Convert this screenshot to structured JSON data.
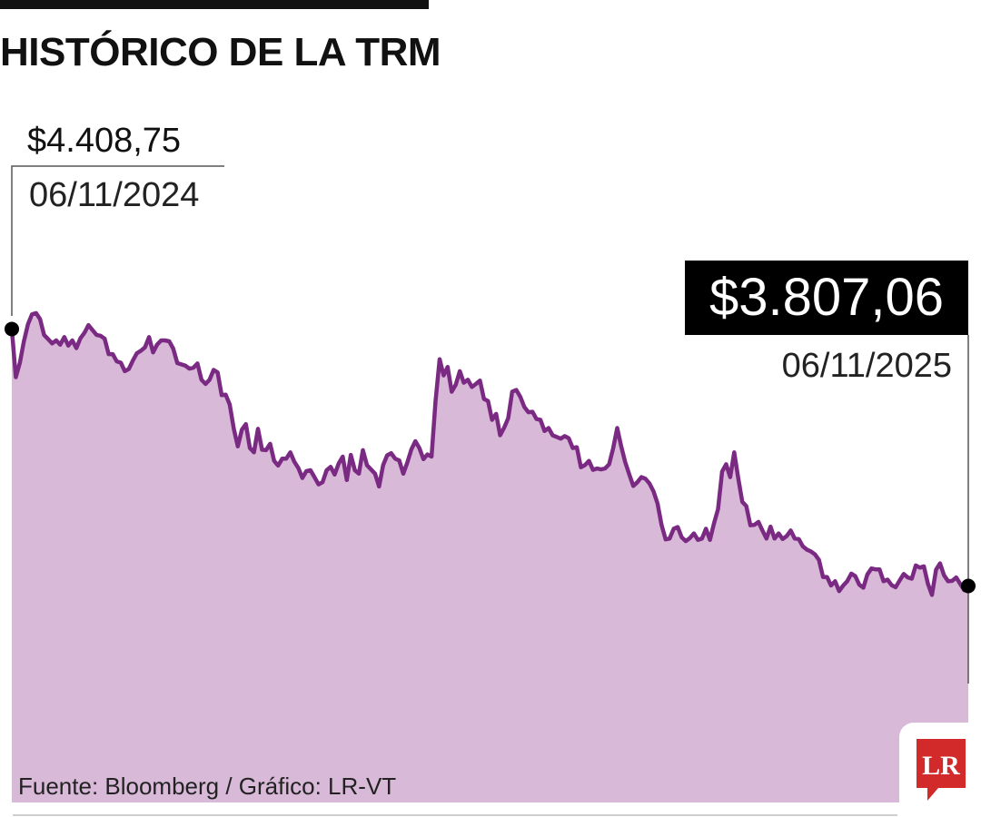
{
  "title": "HISTÓRICO DE LA TRM",
  "source": "Fuente: Bloomberg / Gráfico: LR-VT",
  "logo": "LR",
  "colors": {
    "line": "#7a2a82",
    "fill": "#d9b9d8",
    "marker": "#000000",
    "logo": "#d22a2a"
  },
  "chart_data": {
    "type": "area",
    "start": {
      "value_label": "$4.408,75",
      "date_label": "06/11/2024",
      "value": 4408.75
    },
    "end": {
      "value_label": "$3.807,06",
      "date_label": "06/11/2025",
      "value": 3807.06
    },
    "ylim": [
      3300,
      4550
    ],
    "grid": false,
    "series": [
      {
        "values": [
          4408.75,
          4296,
          4330,
          4380,
          4420,
          4443,
          4446,
          4432,
          4395,
          4385,
          4375,
          4382,
          4372,
          4390,
          4370,
          4382,
          4364,
          4387,
          4400,
          4418,
          4406,
          4395,
          4393,
          4386,
          4350,
          4350,
          4333,
          4330,
          4310,
          4315,
          4335,
          4352,
          4358,
          4366,
          4390,
          4354,
          4372,
          4382,
          4382,
          4380,
          4363,
          4329,
          4326,
          4323,
          4316,
          4318,
          4328,
          4290,
          4280,
          4290,
          4313,
          4307,
          4254,
          4255,
          4232,
          4175,
          4134,
          4173,
          4186,
          4130,
          4120,
          4175,
          4126,
          4125,
          4140,
          4100,
          4089,
          4105,
          4105,
          4120,
          4098,
          4083,
          4060,
          4076,
          4078,
          4062,
          4045,
          4050,
          4078,
          4086,
          4068,
          4094,
          4110,
          4055,
          4114,
          4078,
          4070,
          4125,
          4090,
          4080,
          4070,
          4040,
          4090,
          4113,
          4118,
          4105,
          4101,
          4070,
          4096,
          4127,
          4146,
          4130,
          4104,
          4115,
          4110,
          4240,
          4338,
          4300,
          4320,
          4262,
          4278,
          4310,
          4283,
          4290,
          4273,
          4280,
          4288,
          4245,
          4240,
          4196,
          4210,
          4160,
          4178,
          4200,
          4262,
          4266,
          4250,
          4226,
          4214,
          4215,
          4198,
          4196,
          4170,
          4177,
          4160,
          4156,
          4152,
          4158,
          4153,
          4130,
          4132,
          4085,
          4090,
          4100,
          4079,
          4082,
          4080,
          4082,
          4092,
          4129,
          4177,
          4134,
          4097,
          4068,
          4041,
          4050,
          4062,
          4058,
          4047,
          4029,
          4000,
          3950,
          3916,
          3918,
          3941,
          3945,
          3921,
          3912,
          3919,
          3930,
          3915,
          3918,
          3941,
          3915,
          3954,
          3987,
          4075,
          4092,
          4062,
          4120,
          4060,
          4004,
          3994,
          3949,
          3950,
          3957,
          3937,
          3918,
          3946,
          3918,
          3930,
          3917,
          3924,
          3937,
          3918,
          3917,
          3900,
          3892,
          3888,
          3881,
          3868,
          3828,
          3828,
          3808,
          3818,
          3795,
          3808,
          3818,
          3836,
          3830,
          3810,
          3803,
          3834,
          3848,
          3846,
          3846,
          3818,
          3822,
          3809,
          3804,
          3820,
          3835,
          3827,
          3824,
          3855,
          3850,
          3853,
          3812,
          3786,
          3845,
          3860,
          3832,
          3818,
          3819,
          3827,
          3812,
          3797,
          3807.06
        ]
      }
    ]
  }
}
